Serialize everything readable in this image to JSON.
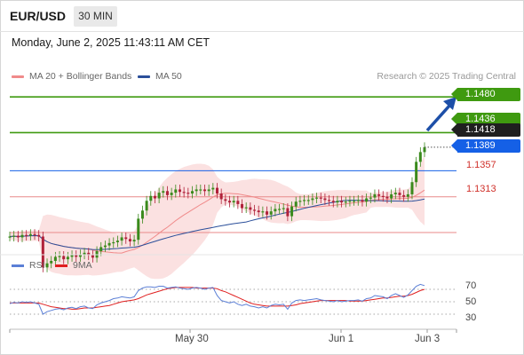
{
  "header": {
    "pair": "EUR/USD",
    "timeframe": "30 MIN"
  },
  "datetime": "Monday, June 2, 2025 11:43:11 AM CET",
  "legend": {
    "ma20_label": "MA 20 + Bollinger Bands",
    "ma50_label": "MA 50",
    "credit": "Research © 2025 Trading Central"
  },
  "price_levels": {
    "resistance_2": "1.1480",
    "resistance_1": "1.1436",
    "last_price": "1.1418",
    "pivot": "1.1389",
    "support_1": "1.1357",
    "support_2": "1.1313"
  },
  "rsi_panel": {
    "rsi_label": "RSI",
    "ma_label": "9MA",
    "levels": [
      "70",
      "50",
      "30"
    ]
  },
  "x_axis": {
    "labels": [
      "May 30",
      "Jun 1",
      "Jun 3"
    ]
  },
  "colors": {
    "green": "#3f9a10",
    "blue": "#1560e6",
    "red": "#d0302a",
    "ma20": "#f08a8a",
    "ma50": "#2b4f9a",
    "rsi": "#5b7fd6",
    "rsi_ma": "#e01f1f",
    "bull_candle": "#3a8a1c",
    "bear_candle": "#b0213a",
    "band_fill": "#fbe1e1",
    "arrow": "#1d4fa8"
  },
  "chart_data": {
    "type": "line",
    "title": "EUR/USD",
    "timeframe": "30 MIN",
    "price_range": [
      1.129,
      1.149
    ],
    "close_series": [
      1.1308,
      1.1309,
      1.1307,
      1.131,
      1.1309,
      1.1311,
      1.131,
      1.1308,
      1.127,
      1.1275,
      1.1278,
      1.1283,
      1.1284,
      1.128,
      1.1283,
      1.1285,
      1.1283,
      1.1286,
      1.1288,
      1.1285,
      1.1282,
      1.129,
      1.1295,
      1.1297,
      1.13,
      1.1301,
      1.1303,
      1.1307,
      1.1305,
      1.1302,
      1.1304,
      1.133,
      1.134,
      1.1352,
      1.1358,
      1.1355,
      1.1362,
      1.1364,
      1.1359,
      1.1362,
      1.1366,
      1.1363,
      1.1362,
      1.1361,
      1.1364,
      1.1366,
      1.1366,
      1.1364,
      1.1366,
      1.1368,
      1.1361,
      1.1354,
      1.1352,
      1.135,
      1.1352,
      1.1348,
      1.1343,
      1.1344,
      1.1341,
      1.134,
      1.1338,
      1.1339,
      1.1335,
      1.1339,
      1.1342,
      1.1342,
      1.1343,
      1.1333,
      1.1345,
      1.1351,
      1.1352,
      1.1353,
      1.1353,
      1.1355,
      1.1356,
      1.1355,
      1.1353,
      1.1352,
      1.135,
      1.1352,
      1.135,
      1.1351,
      1.1352,
      1.1352,
      1.1353,
      1.1351,
      1.1355,
      1.1356,
      1.136,
      1.1358,
      1.1357,
      1.1355,
      1.136,
      1.1362,
      1.1359,
      1.1357,
      1.136,
      1.1375,
      1.14,
      1.1412,
      1.1418
    ],
    "horizontal_levels": [
      1.148,
      1.1436,
      1.1389,
      1.1357,
      1.1313
    ],
    "rsi": {
      "range": [
        10,
        90
      ],
      "levels": [
        70,
        50,
        30
      ],
      "values": [
        47,
        49,
        48,
        50,
        49,
        50,
        48,
        46,
        30,
        34,
        36,
        38,
        39,
        37,
        40,
        41,
        39,
        42,
        43,
        40,
        39,
        45,
        48,
        50,
        52,
        55,
        56,
        58,
        57,
        56,
        58,
        68,
        72,
        74,
        74,
        73,
        75,
        75,
        72,
        73,
        74,
        72,
        71,
        70,
        72,
        73,
        72,
        70,
        72,
        73,
        60,
        52,
        50,
        48,
        50,
        46,
        44,
        46,
        43,
        42,
        40,
        42,
        40,
        44,
        46,
        45,
        46,
        38,
        48,
        52,
        53,
        52,
        53,
        54,
        55,
        53,
        52,
        51,
        50,
        52,
        50,
        51,
        52,
        52,
        53,
        51,
        55,
        56,
        60,
        59,
        58,
        55,
        60,
        63,
        60,
        57,
        61,
        68,
        75,
        78,
        76
      ],
      "ma9": [
        48,
        48,
        48,
        48,
        48,
        48,
        48,
        48,
        46,
        44,
        42,
        41,
        40,
        39,
        39,
        38,
        38,
        39,
        40,
        40,
        40,
        41,
        42,
        43,
        44,
        46,
        48,
        50,
        51,
        52,
        53,
        55,
        58,
        61,
        63,
        65,
        67,
        69,
        71,
        72,
        73,
        73,
        73,
        73,
        73,
        72,
        72,
        72,
        72,
        72,
        71,
        68,
        66,
        63,
        60,
        57,
        54,
        51,
        48,
        46,
        45,
        44,
        43,
        43,
        43,
        43,
        43,
        43,
        44,
        45,
        47,
        48,
        49,
        50,
        51,
        52,
        52,
        52,
        52,
        52,
        52,
        52,
        51,
        51,
        51,
        51,
        52,
        53,
        54,
        55,
        56,
        56,
        57,
        58,
        59,
        59,
        60,
        62,
        65,
        68,
        70
      ]
    },
    "x_labels": [
      "May 30",
      "Jun 1",
      "Jun 3"
    ]
  }
}
